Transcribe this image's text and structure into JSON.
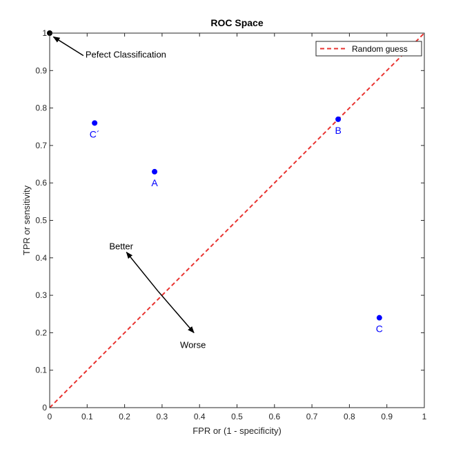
{
  "chart_data": {
    "type": "scatter",
    "title": "ROC Space",
    "xlabel": "FPR or (1 - specificity)",
    "ylabel": "TPR or sensitivity",
    "xlim": [
      0,
      1
    ],
    "ylim": [
      0,
      1
    ],
    "x_ticks": [
      0,
      0.1,
      0.2,
      0.3,
      0.4,
      0.5,
      0.6,
      0.7,
      0.8,
      0.9,
      1
    ],
    "x_tick_labels": [
      "0",
      "0.1",
      "0.2",
      "0.3",
      "0.4",
      "0.5",
      "0.6",
      "0.7",
      "0.8",
      "0.9",
      "1"
    ],
    "y_ticks": [
      0,
      0.1,
      0.2,
      0.3,
      0.4,
      0.5,
      0.6,
      0.7,
      0.8,
      0.9,
      1
    ],
    "y_tick_labels": [
      "0",
      "0.1",
      "0.2",
      "0.3",
      "0.4",
      "0.5",
      "0.6",
      "0.7",
      "0.8",
      "0.9",
      "1"
    ],
    "grid": false,
    "legend_position": "top-right",
    "series": [
      {
        "name": "Random guess",
        "kind": "line",
        "style": "dashed",
        "color": "#e8322f",
        "x": [
          0,
          1
        ],
        "y": [
          0,
          1
        ]
      },
      {
        "kind": "points",
        "color": "#0000ff",
        "points": [
          {
            "label": "A",
            "x": 0.28,
            "y": 0.63
          },
          {
            "label": "B",
            "x": 0.77,
            "y": 0.77
          },
          {
            "label": "C",
            "x": 0.88,
            "y": 0.24
          },
          {
            "label": "C´",
            "x": 0.12,
            "y": 0.76
          }
        ]
      },
      {
        "kind": "points",
        "color": "#000000",
        "points": [
          {
            "label": "",
            "x": 0,
            "y": 1
          }
        ]
      }
    ],
    "annotations": [
      {
        "text": "Pefect Classification",
        "arrow_from": [
          0.09,
          0.94
        ],
        "arrow_to": [
          0.01,
          0.99
        ]
      },
      {
        "text": "Better",
        "arrow_from": [
          0.29,
          0.31
        ],
        "arrow_to": [
          0.205,
          0.415
        ]
      },
      {
        "text": "Worse",
        "arrow_from": [
          0.29,
          0.31
        ],
        "arrow_to": [
          0.385,
          0.2
        ]
      }
    ]
  }
}
